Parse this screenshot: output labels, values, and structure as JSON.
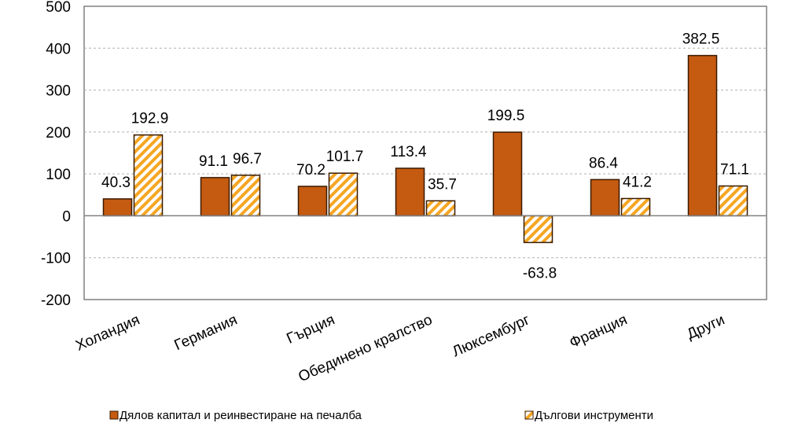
{
  "chart_data": {
    "type": "bar",
    "categories": [
      "Холандия",
      "Германия",
      "Гърция",
      "Обединено кралство",
      "Люксембург",
      "Франция",
      "Други"
    ],
    "series": [
      {
        "name": "Дялов капитал и реинвестиране на печалба",
        "values": [
          40.3,
          91.1,
          70.2,
          113.4,
          199.5,
          86.4,
          382.5
        ],
        "labels": [
          "40.3",
          "91.1",
          "70.2",
          "113.4",
          "199.5",
          "86.4",
          "382.5"
        ],
        "color": "#C55A11",
        "pattern": "solid"
      },
      {
        "name": "Дългови инструменти",
        "values": [
          192.9,
          96.7,
          101.7,
          35.7,
          -63.8,
          41.2,
          71.1
        ],
        "labels": [
          "192.9",
          "96.7",
          "101.7",
          "35.7",
          "-63.8",
          "41.2",
          "71.1"
        ],
        "color": "#F5A623",
        "pattern": "diagonal-hatch"
      }
    ],
    "ylim": [
      -200,
      500
    ],
    "yticks": [
      500,
      400,
      300,
      200,
      100,
      0,
      -100,
      -200
    ],
    "gridlines": true,
    "legend_position": "bottom"
  }
}
